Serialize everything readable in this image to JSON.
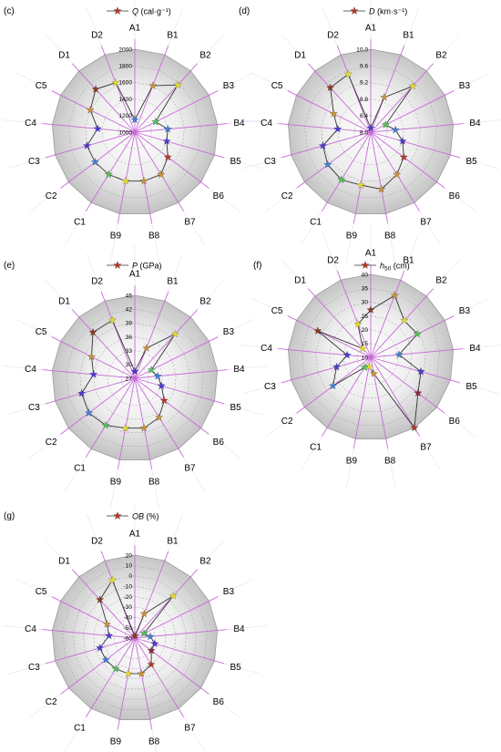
{
  "axes": [
    "A1",
    "B1",
    "B2",
    "B3",
    "B4",
    "B5",
    "B6",
    "B7",
    "B8",
    "B9",
    "C1",
    "C2",
    "C3",
    "C4",
    "C5",
    "D1",
    "D2"
  ],
  "colors": {
    "radial_line": "#c86bd8",
    "data_line": "#333333",
    "star_palette": [
      "#8b3a1e",
      "#c8923a",
      "#e2dc2c",
      "#52c25a",
      "#3f7fd6",
      "#4d3ad0",
      "#8a2a3e",
      "#b33a2c"
    ]
  },
  "chart_data": [
    {
      "type": "radar",
      "panel_label": "(c)",
      "legend_label": "Q",
      "legend_unit": "(cal·g⁻¹)",
      "rlim": [
        1000,
        2000
      ],
      "ticks": [
        "1000",
        "1200",
        "1400",
        "1600",
        "1800",
        "2000"
      ],
      "values": [
        1150,
        1600,
        1770,
        1280,
        1400,
        1400,
        1500,
        1600,
        1600,
        1600,
        1600,
        1600,
        1600,
        1450,
        1600,
        1700,
        1640
      ],
      "star_colors": [
        4,
        1,
        2,
        3,
        4,
        5,
        7,
        1,
        1,
        2,
        3,
        4,
        5,
        5,
        1,
        0,
        2
      ]
    },
    {
      "type": "radar",
      "panel_label": "(d)",
      "legend_label": "D",
      "legend_unit": "(km·s⁻¹)",
      "rlim": [
        8.0,
        10.0
      ],
      "ticks": [
        "8.0",
        "8.4",
        "8.8",
        "9.2",
        "9.6",
        "10.0"
      ],
      "values": [
        8.1,
        8.9,
        9.5,
        8.4,
        8.6,
        8.8,
        9.0,
        9.2,
        9.4,
        9.3,
        9.35,
        9.3,
        9.2,
        8.8,
        9.0,
        9.45,
        9.5
      ],
      "star_colors": [
        5,
        1,
        2,
        3,
        4,
        5,
        7,
        1,
        1,
        2,
        3,
        4,
        5,
        5,
        1,
        0,
        2
      ]
    },
    {
      "type": "radar",
      "panel_label": "(e)",
      "legend_label": "P",
      "legend_unit": "(GPa)",
      "rlim": [
        27,
        45
      ],
      "ticks": [
        "27",
        "30",
        "33",
        "36",
        "39",
        "42",
        "45"
      ],
      "values": [
        28.5,
        34,
        40,
        31,
        32,
        33,
        35,
        37,
        38,
        38,
        39,
        39.5,
        39,
        36,
        37.5,
        40.5,
        40.5
      ],
      "star_colors": [
        5,
        1,
        2,
        3,
        4,
        5,
        7,
        1,
        1,
        2,
        3,
        4,
        5,
        5,
        1,
        0,
        2
      ]
    },
    {
      "type": "radar",
      "panel_label": "(f)",
      "legend_label": "h",
      "legend_sub": "50",
      "legend_unit": "(cm)",
      "rlim": [
        10,
        45
      ],
      "ticks": [
        "10",
        "15",
        "20",
        "25",
        "30",
        "35",
        "40"
      ],
      "values": [
        30,
        38,
        31,
        32,
        22,
        32,
        35,
        45,
        17,
        14,
        15,
        30,
        25,
        20,
        35,
        15,
        25
      ],
      "star_colors": [
        0,
        1,
        2,
        3,
        4,
        5,
        6,
        7,
        1,
        2,
        3,
        4,
        5,
        5,
        0,
        2,
        2
      ]
    },
    {
      "type": "radar",
      "panel_label": "(g)",
      "legend_label": "OB",
      "legend_unit": "(%)",
      "rlim": [
        -60,
        20
      ],
      "ticks": [
        "-60",
        "-50",
        "-40",
        "-30",
        "-20",
        "-10",
        "0",
        "10",
        "20"
      ],
      "values": [
        -58,
        -35,
        -5,
        -50,
        -45,
        -40,
        -40,
        -30,
        -25,
        -25,
        -25,
        -25,
        -25,
        -35,
        -30,
        -10,
        0
      ],
      "star_colors": [
        0,
        1,
        2,
        3,
        4,
        5,
        6,
        7,
        1,
        2,
        3,
        4,
        5,
        5,
        1,
        0,
        2
      ]
    }
  ]
}
